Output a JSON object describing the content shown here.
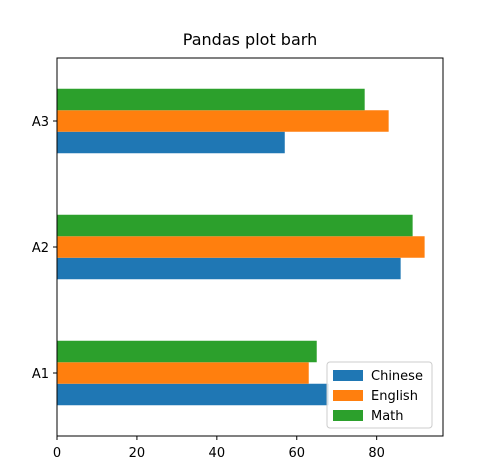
{
  "chart_data": {
    "type": "bar",
    "orientation": "horizontal",
    "title": "Pandas plot barh",
    "categories": [
      "A1",
      "A2",
      "A3"
    ],
    "series": [
      {
        "name": "Chinese",
        "color": "#1f77b4",
        "values": [
          68,
          86,
          57
        ]
      },
      {
        "name": "English",
        "color": "#ff7f0e",
        "values": [
          63,
          92,
          83
        ]
      },
      {
        "name": "Math",
        "color": "#2ca02c",
        "values": [
          65,
          89,
          77
        ]
      }
    ],
    "xticks": [
      "0",
      "20",
      "40",
      "60",
      "80"
    ],
    "xlim": [
      0,
      96.6
    ],
    "grid": false,
    "legend_position": "lower right"
  }
}
